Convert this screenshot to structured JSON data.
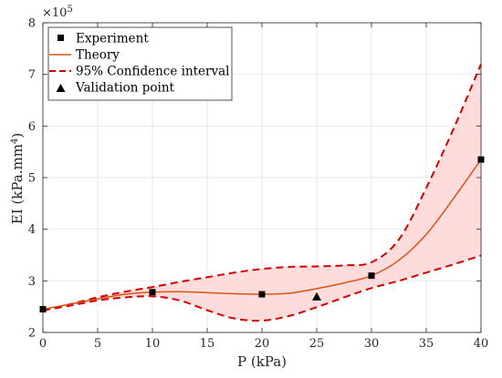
{
  "chart_data": {
    "type": "line",
    "xlabel": "P (kPa)",
    "ylabel": "EI (kPa.mm",
    "ylabel_sup": "4",
    "ylabel_close": ")",
    "y_multiplier": "×10",
    "y_multiplier_exp": "5",
    "xlim": [
      0,
      40
    ],
    "ylim": [
      2,
      8
    ],
    "x_ticks": [
      0,
      5,
      10,
      15,
      20,
      25,
      30,
      35,
      40
    ],
    "y_ticks": [
      2,
      3,
      4,
      5,
      6,
      7,
      8
    ],
    "grid": true,
    "legend_position": "top-left",
    "legend": [
      {
        "label": "Experiment",
        "marker": "square"
      },
      {
        "label": "Theory",
        "marker": "line"
      },
      {
        "label": "95% Confidence interval",
        "marker": "dashed"
      },
      {
        "label": "Validation point",
        "marker": "triangle"
      }
    ],
    "series": [
      {
        "name": "Experiment",
        "kind": "scatter",
        "x": [
          0,
          10,
          20,
          30,
          40
        ],
        "y": [
          2.45,
          2.78,
          2.74,
          3.1,
          5.35
        ]
      },
      {
        "name": "Theory",
        "kind": "line",
        "x": [
          0,
          2.5,
          5,
          7.5,
          10,
          12.5,
          15,
          17.5,
          20,
          22.5,
          25,
          27.5,
          30,
          32.5,
          35,
          37.5,
          40
        ],
        "y": [
          2.45,
          2.55,
          2.65,
          2.74,
          2.78,
          2.79,
          2.77,
          2.75,
          2.74,
          2.76,
          2.85,
          2.96,
          3.1,
          3.4,
          3.9,
          4.6,
          5.35
        ]
      },
      {
        "name": "95% Confidence interval (upper)",
        "kind": "dashed",
        "x": [
          0,
          2.5,
          5,
          7.5,
          10,
          12.5,
          15,
          17.5,
          20,
          22.5,
          25,
          27.5,
          30,
          32.5,
          35,
          37.5,
          40
        ],
        "y": [
          2.42,
          2.55,
          2.68,
          2.79,
          2.88,
          2.98,
          3.07,
          3.16,
          3.23,
          3.27,
          3.28,
          3.3,
          3.36,
          3.8,
          4.8,
          5.95,
          7.2
        ]
      },
      {
        "name": "95% Confidence interval (lower)",
        "kind": "dashed",
        "x": [
          0,
          2.5,
          5,
          7.5,
          10,
          12.5,
          15,
          17.5,
          20,
          22.5,
          25,
          27.5,
          30,
          32.5,
          35,
          37.5,
          40
        ],
        "y": [
          2.43,
          2.52,
          2.62,
          2.68,
          2.7,
          2.62,
          2.43,
          2.27,
          2.23,
          2.32,
          2.49,
          2.68,
          2.86,
          3.0,
          3.16,
          3.32,
          3.49
        ]
      },
      {
        "name": "Validation point",
        "kind": "scatter",
        "x": [
          25
        ],
        "y": [
          2.69
        ]
      }
    ],
    "colors": {
      "theory": "#D95319",
      "confidence": "#D40000",
      "band_fill": "#FFD6D6",
      "markers": "#000000",
      "grid": "#DFDFDF",
      "axis": "#262626"
    }
  }
}
